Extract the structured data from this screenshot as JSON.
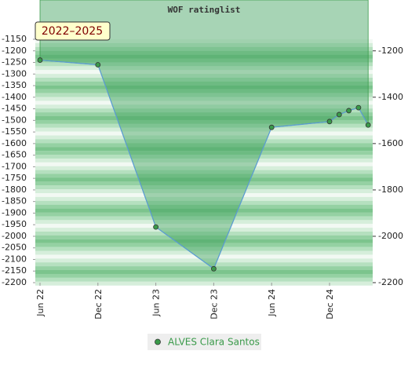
{
  "chart_data": {
    "type": "line",
    "title": "WOF ratinglist",
    "period": "2022–2025",
    "x": [
      "2022-06",
      "2022-12",
      "2023-06",
      "2023-12",
      "2024-06",
      "2024-12",
      "2025-01",
      "2025-02",
      "2025-03",
      "2025-04"
    ],
    "series": [
      {
        "name": "ALVES Clara Santos",
        "color": "#5b9bd5",
        "values": [
          -1240,
          -1260,
          -1960,
          -2140,
          -1530,
          -1505,
          -1475,
          -1458,
          -1445,
          -1520
        ]
      }
    ],
    "xticks": [
      {
        "value": "2022-06",
        "label": "Jun 22"
      },
      {
        "value": "2022-12",
        "label": "Dec 22"
      },
      {
        "value": "2023-06",
        "label": "Jun 23"
      },
      {
        "value": "2023-12",
        "label": "Dec 23"
      },
      {
        "value": "2024-06",
        "label": "Jun 24"
      },
      {
        "value": "2024-12",
        "label": "Dec 24"
      }
    ],
    "ylim": [
      -2200,
      -1150
    ],
    "yticks": [
      -1150,
      -1200,
      -1250,
      -1300,
      -1350,
      -1400,
      -1450,
      -1500,
      -1550,
      -1600,
      -1650,
      -1700,
      -1750,
      -1800,
      -1850,
      -1900,
      -1950,
      -2000,
      -2050,
      -2100,
      -2150,
      -2200
    ],
    "y2lim": [
      -2200,
      -1150
    ],
    "y2ticks": [
      -1200,
      -1400,
      -1600,
      -1800,
      -2000,
      -2200
    ]
  }
}
